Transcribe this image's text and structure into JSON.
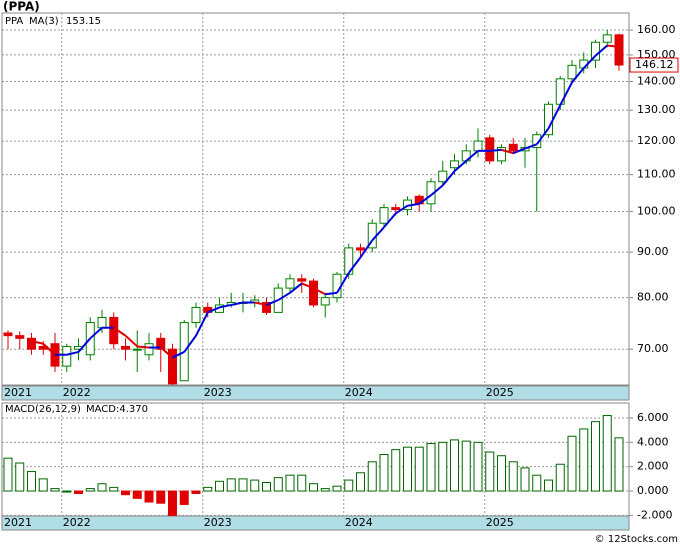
{
  "chart_data": [
    {
      "type": "candlestick",
      "title": "(PPA)",
      "name": "PPA",
      "up_color": "#008000",
      "down_color": "#e00000",
      "log_scale": true,
      "grid": true,
      "categories": [
        "2021",
        null,
        null,
        null,
        null,
        "2022",
        null,
        null,
        null,
        null,
        null,
        null,
        null,
        null,
        null,
        null,
        null,
        "2023",
        null,
        null,
        null,
        null,
        null,
        null,
        null,
        null,
        null,
        null,
        null,
        "2024",
        null,
        null,
        null,
        null,
        null,
        null,
        null,
        null,
        null,
        null,
        null,
        "2025",
        null,
        null,
        null,
        null,
        null,
        null,
        null,
        null,
        null,
        null,
        null
      ],
      "open": [
        73,
        72.5,
        72,
        70.5,
        71,
        67,
        70,
        69,
        74,
        76,
        70.5,
        70,
        69,
        72,
        70,
        64.5,
        75,
        78,
        77,
        78.5,
        79,
        79,
        79,
        77,
        82,
        84,
        83.5,
        78.5,
        80,
        85,
        91,
        91,
        97,
        101,
        100.5,
        104,
        102,
        108,
        112,
        114,
        117,
        121,
        114,
        119,
        117,
        118,
        122,
        132,
        141,
        145,
        148,
        155,
        158
      ],
      "high": [
        73.5,
        73.3,
        73,
        71.5,
        73,
        71,
        72,
        76,
        77.5,
        77,
        72,
        73.5,
        73,
        73,
        71,
        75.5,
        79,
        79,
        80,
        81,
        81,
        80.5,
        80,
        83,
        85,
        85,
        84,
        81,
        85.5,
        92,
        92,
        98,
        102,
        102,
        104,
        104.5,
        109,
        114,
        116,
        119,
        124,
        122,
        119,
        121,
        121,
        123,
        133,
        142,
        148,
        151,
        156,
        160,
        158.5
      ],
      "low": [
        70,
        70,
        69,
        69,
        66,
        66,
        68,
        68,
        73,
        70,
        68,
        66,
        68,
        66,
        63.8,
        64.5,
        74,
        76,
        77,
        78,
        77,
        78,
        76.5,
        77,
        81,
        81,
        78,
        76,
        79,
        84,
        89,
        90,
        96,
        99,
        99,
        100,
        100,
        107,
        110,
        113,
        115,
        113,
        113,
        116,
        112,
        100,
        121,
        130,
        139,
        143,
        145,
        153,
        144
      ],
      "close": [
        72.5,
        72,
        70,
        70,
        67,
        70.5,
        70.5,
        75,
        76,
        71,
        70,
        70,
        71,
        70,
        64,
        75,
        78,
        77,
        78.5,
        79,
        79,
        79.5,
        77,
        82,
        84,
        83.5,
        78.5,
        80,
        85,
        91,
        90.5,
        97,
        101,
        100.5,
        103,
        102,
        108,
        111,
        114,
        117,
        120,
        114,
        118,
        117,
        118,
        122,
        132,
        141,
        146,
        148,
        155,
        158,
        146.12
      ],
      "ma": {
        "name": "MA(3)",
        "color": "#0000dd",
        "down_color": "#e00000",
        "values": [
          null,
          null,
          71.5,
          71,
          69,
          69,
          69.5,
          72,
          74,
          74,
          72.5,
          70.5,
          70.3,
          70.3,
          68.5,
          69.5,
          72.5,
          77,
          78,
          78.5,
          79,
          79,
          78.5,
          79.5,
          81,
          83,
          82,
          80.7,
          81,
          85.3,
          88.8,
          92.8,
          96,
          99.5,
          101.5,
          102,
          104.3,
          107,
          111,
          114,
          117,
          117,
          117.3,
          116.3,
          117.7,
          119,
          124,
          131.7,
          139.7,
          145,
          149.7,
          153.7,
          153.15
        ]
      },
      "ylim": [
        63.8,
        167.2
      ],
      "yticks": [
        {
          "value": 70,
          "label": "70.00"
        },
        {
          "value": 80,
          "label": "80.00"
        },
        {
          "value": 90,
          "label": "90.00"
        },
        {
          "value": 100,
          "label": "100.00"
        },
        {
          "value": 110,
          "label": "110.00"
        },
        {
          "value": 120,
          "label": "120.00"
        },
        {
          "value": 130,
          "label": "130.00"
        },
        {
          "value": 140,
          "label": "140.00"
        },
        {
          "value": 150,
          "label": "150.00"
        },
        {
          "value": 160,
          "label": "160.00"
        }
      ]
    },
    {
      "type": "bar",
      "title": "MACD(26,12,9)",
      "current_label": "MACD:4.370",
      "color": "#006600",
      "down_color": "#e00000",
      "grid": true,
      "categories": [
        "2021",
        null,
        null,
        null,
        null,
        "2022",
        null,
        null,
        null,
        null,
        null,
        null,
        null,
        null,
        null,
        null,
        null,
        "2023",
        null,
        null,
        null,
        null,
        null,
        null,
        null,
        null,
        null,
        null,
        null,
        "2024",
        null,
        null,
        null,
        null,
        null,
        null,
        null,
        null,
        null,
        null,
        null,
        "2025",
        null,
        null,
        null,
        null,
        null,
        null,
        null,
        null,
        null,
        null,
        null
      ],
      "values": [
        2.7,
        2.3,
        1.6,
        1.0,
        0.2,
        0.0,
        -0.2,
        0.2,
        0.6,
        0.3,
        -0.3,
        -0.6,
        -0.9,
        -1.0,
        -2.0,
        -1.1,
        -0.2,
        0.3,
        0.8,
        1.0,
        1.0,
        0.9,
        0.7,
        1.1,
        1.3,
        1.3,
        0.6,
        0.2,
        0.4,
        0.9,
        1.5,
        2.4,
        3.0,
        3.4,
        3.6,
        3.6,
        3.9,
        4.0,
        4.2,
        4.1,
        4.0,
        3.2,
        2.9,
        2.4,
        1.9,
        1.3,
        0.9,
        2.2,
        4.5,
        5.1,
        5.7,
        6.2,
        4.37
      ],
      "ylim": [
        -2.05,
        7.23
      ],
      "yticks": [
        {
          "value": -2,
          "label": "-2.000"
        },
        {
          "value": 0,
          "label": "0.000"
        },
        {
          "value": 2,
          "label": "2.000"
        },
        {
          "value": 4,
          "label": "4.000"
        },
        {
          "value": 6,
          "label": "6.000"
        }
      ]
    }
  ],
  "footer": "© 12Stocks.com"
}
